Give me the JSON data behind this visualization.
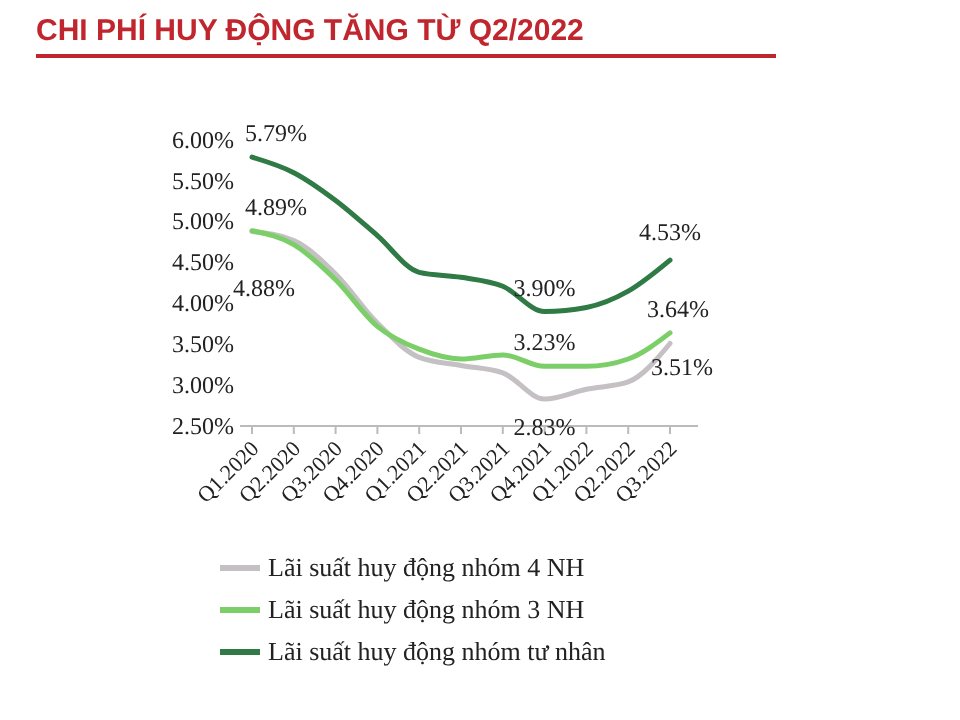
{
  "chart_data": {
    "type": "line",
    "title": "CHI PHÍ HUY ĐỘNG TĂNG TỪ Q2/2022",
    "categories": [
      "Q1.2020",
      "Q2.2020",
      "Q3.2020",
      "Q4.2020",
      "Q1.2021",
      "Q2.2021",
      "Q3.2021",
      "Q4.2021",
      "Q1.2022",
      "Q2.2022",
      "Q3.2022"
    ],
    "series": [
      {
        "name": "Lãi suất huy động nhóm 4 NH",
        "color": "#c4c0c4",
        "values": [
          4.88,
          4.77,
          4.36,
          3.76,
          3.34,
          3.24,
          3.15,
          2.83,
          2.95,
          3.04,
          3.51
        ],
        "value_labels": [
          "4.88%",
          null,
          null,
          null,
          null,
          null,
          null,
          "2.83%",
          null,
          null,
          "3.51%"
        ]
      },
      {
        "name": "Lãi suất huy động nhóm 3 NH",
        "color": "#7ccf68",
        "values": [
          4.89,
          4.72,
          4.29,
          3.72,
          3.44,
          3.32,
          3.37,
          3.23,
          3.23,
          3.32,
          3.64
        ],
        "value_labels": [
          "4.89%",
          null,
          null,
          null,
          null,
          null,
          null,
          "3.23%",
          null,
          null,
          "3.64%"
        ]
      },
      {
        "name": "Lãi suất huy động nhóm tư nhân",
        "color": "#2f7a45",
        "values": [
          5.79,
          5.6,
          5.26,
          4.83,
          4.38,
          4.32,
          4.21,
          3.9,
          3.95,
          4.15,
          4.53
        ],
        "value_labels": [
          "5.79%",
          null,
          null,
          null,
          null,
          null,
          null,
          "3.90%",
          null,
          null,
          "4.53%"
        ]
      }
    ],
    "ylim": [
      2.5,
      6
    ],
    "yticks": [
      {
        "value": 2.5,
        "label": "2.50%"
      },
      {
        "value": 3,
        "label": "3.00%"
      },
      {
        "value": 3.5,
        "label": "3.50%"
      },
      {
        "value": 4,
        "label": "4.00%"
      },
      {
        "value": 4.5,
        "label": "4.50%"
      },
      {
        "value": 5,
        "label": "5.00%"
      },
      {
        "value": 5.5,
        "label": "5.50%"
      },
      {
        "value": 6,
        "label": "6.00%"
      }
    ],
    "grid": false,
    "legend": "bottom",
    "marker": "none",
    "line_style": "solid"
  }
}
